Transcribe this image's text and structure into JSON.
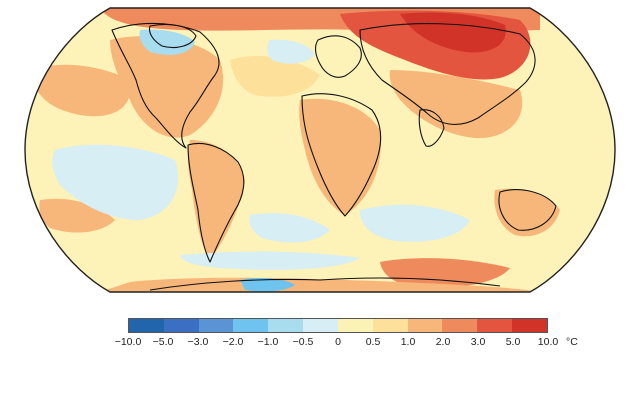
{
  "map": {
    "projection": "Robinson",
    "colors": {
      "ocean_base": "#fdf2b8",
      "coastline": "#111111",
      "frame": "#222222"
    }
  },
  "legend": {
    "bins": [
      {
        "color": "#2166ac"
      },
      {
        "color": "#3a6fc4"
      },
      {
        "color": "#5a94d4"
      },
      {
        "color": "#6fc4ef"
      },
      {
        "color": "#a8dcef"
      },
      {
        "color": "#d6eef4"
      },
      {
        "color": "#fbf3b6"
      },
      {
        "color": "#fde19a"
      },
      {
        "color": "#f7b77a"
      },
      {
        "color": "#ef8a5c"
      },
      {
        "color": "#e4553f"
      },
      {
        "color": "#d13328"
      }
    ],
    "ticks": [
      "−10.0",
      "−5.0",
      "−3.0",
      "−2.0",
      "−1.0",
      "−0.5",
      "0",
      "0.5",
      "1.0",
      "2.0",
      "3.0",
      "5.0",
      "10.0"
    ],
    "unit": "°C"
  }
}
